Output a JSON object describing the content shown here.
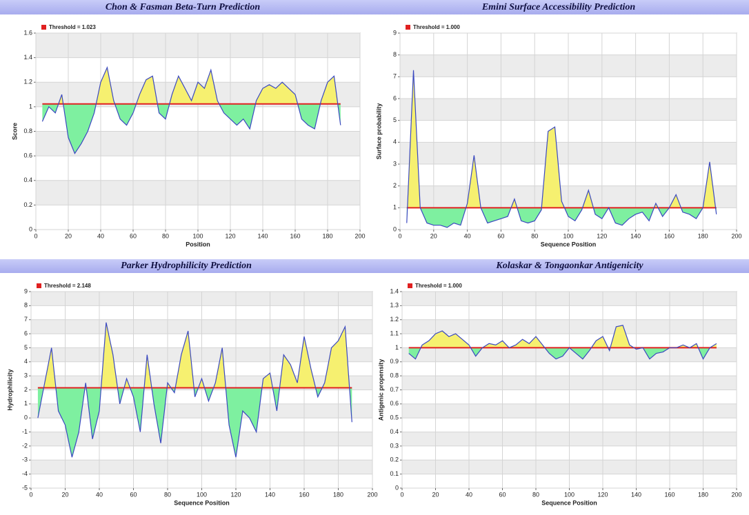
{
  "chart_data": [
    {
      "type": "line",
      "title": "Chon & Fasman Beta-Turn Prediction",
      "x_label": "Position",
      "y_label": "Score",
      "xlim": [
        0,
        200
      ],
      "xticks": [
        0,
        20,
        40,
        60,
        80,
        100,
        120,
        140,
        160,
        180,
        200
      ],
      "ylim": [
        0,
        1.6
      ],
      "yticks": [
        0,
        0.2,
        0.4,
        0.6,
        0.8,
        1,
        1.2,
        1.4,
        1.6
      ],
      "threshold": {
        "name": "Threshold = 1.023",
        "value": 1.023,
        "color": "#e02020"
      },
      "series": [
        {
          "color": "#3a48c0",
          "above_color": "#f6f070",
          "below_color": "#7ef0a0",
          "x": [
            4,
            8,
            12,
            16,
            20,
            24,
            28,
            32,
            36,
            40,
            44,
            48,
            52,
            56,
            60,
            64,
            68,
            72,
            76,
            80,
            84,
            88,
            92,
            96,
            100,
            104,
            108,
            112,
            116,
            120,
            124,
            128,
            132,
            136,
            140,
            144,
            148,
            152,
            156,
            160,
            164,
            168,
            172,
            176,
            180,
            184,
            188
          ],
          "values": [
            0.88,
            1.0,
            0.95,
            1.1,
            0.75,
            0.62,
            0.7,
            0.8,
            0.95,
            1.2,
            1.32,
            1.05,
            0.9,
            0.85,
            0.95,
            1.1,
            1.22,
            1.25,
            0.95,
            0.9,
            1.1,
            1.25,
            1.15,
            1.05,
            1.2,
            1.15,
            1.3,
            1.05,
            0.95,
            0.9,
            0.85,
            0.9,
            0.82,
            1.05,
            1.15,
            1.18,
            1.15,
            1.2,
            1.15,
            1.1,
            0.9,
            0.85,
            0.82,
            1.05,
            1.2,
            1.25,
            0.85
          ]
        }
      ]
    },
    {
      "type": "line",
      "title": "Emini Surface Accessibility Prediction",
      "x_label": "Sequence Position",
      "y_label": "Surface probability",
      "xlim": [
        0,
        200
      ],
      "xticks": [
        0,
        20,
        40,
        60,
        80,
        100,
        120,
        140,
        160,
        180,
        200
      ],
      "ylim": [
        0,
        9
      ],
      "yticks": [
        0,
        1,
        2,
        3,
        4,
        5,
        6,
        7,
        8,
        9
      ],
      "threshold": {
        "name": "Threshold = 1.000",
        "value": 1.0,
        "color": "#e02020"
      },
      "series": [
        {
          "color": "#3a48c0",
          "above_color": "#f6f070",
          "below_color": "#7ef0a0",
          "x": [
            4,
            8,
            12,
            16,
            20,
            24,
            28,
            32,
            36,
            40,
            44,
            48,
            52,
            56,
            60,
            64,
            68,
            72,
            76,
            80,
            84,
            88,
            92,
            96,
            100,
            104,
            108,
            112,
            116,
            120,
            124,
            128,
            132,
            136,
            140,
            144,
            148,
            152,
            156,
            160,
            164,
            168,
            172,
            176,
            180,
            184,
            188
          ],
          "values": [
            0.3,
            7.3,
            1.0,
            0.3,
            0.2,
            0.2,
            0.1,
            0.3,
            0.2,
            1.2,
            3.4,
            1.0,
            0.3,
            0.4,
            0.5,
            0.6,
            1.4,
            0.4,
            0.3,
            0.4,
            0.9,
            4.5,
            4.7,
            1.3,
            0.6,
            0.4,
            0.9,
            1.8,
            0.7,
            0.5,
            1.0,
            0.3,
            0.2,
            0.5,
            0.7,
            0.8,
            0.4,
            1.2,
            0.6,
            1.0,
            1.6,
            0.8,
            0.7,
            0.5,
            1.0,
            3.1,
            0.7
          ]
        }
      ]
    },
    {
      "type": "line",
      "title": "Parker Hydrophilicity Prediction",
      "x_label": "Sequence Position",
      "y_label": "Hydrophilicity",
      "xlim": [
        0,
        200
      ],
      "xticks": [
        0,
        20,
        40,
        60,
        80,
        100,
        120,
        140,
        160,
        180,
        200
      ],
      "ylim": [
        -5,
        9
      ],
      "yticks": [
        -5,
        -4,
        -3,
        -2,
        -1,
        0,
        1,
        2,
        3,
        4,
        5,
        6,
        7,
        8,
        9
      ],
      "threshold": {
        "name": "Threshold = 2.148",
        "value": 2.148,
        "color": "#e02020"
      },
      "series": [
        {
          "color": "#3a48c0",
          "above_color": "#f6f070",
          "below_color": "#7ef0a0",
          "x": [
            4,
            8,
            12,
            16,
            20,
            24,
            28,
            32,
            36,
            40,
            44,
            48,
            52,
            56,
            60,
            64,
            68,
            72,
            76,
            80,
            84,
            88,
            92,
            96,
            100,
            104,
            108,
            112,
            116,
            120,
            124,
            128,
            132,
            136,
            140,
            144,
            148,
            152,
            156,
            160,
            164,
            168,
            172,
            176,
            180,
            184,
            188
          ],
          "values": [
            0,
            2.5,
            5.0,
            0.5,
            -0.5,
            -2.8,
            -1.0,
            2.5,
            -1.5,
            0.5,
            6.8,
            4.5,
            1.0,
            2.8,
            1.5,
            -1.0,
            4.5,
            1.0,
            -1.8,
            2.5,
            1.8,
            4.5,
            6.2,
            1.5,
            2.8,
            1.2,
            2.5,
            5.0,
            -0.5,
            -2.8,
            0.5,
            0,
            -1.0,
            2.8,
            3.2,
            0.5,
            4.5,
            3.8,
            2.5,
            5.8,
            3.5,
            1.5,
            2.5,
            5.0,
            5.5,
            6.5,
            -0.3
          ]
        }
      ]
    },
    {
      "type": "line",
      "title": "Kolaskar & Tongaonkar Antigenicity",
      "x_label": "Sequence Position",
      "y_label": "Antigenic propensity",
      "xlim": [
        0,
        200
      ],
      "xticks": [
        0,
        20,
        40,
        60,
        80,
        100,
        120,
        140,
        160,
        180,
        200
      ],
      "ylim": [
        0,
        1.4
      ],
      "yticks": [
        0,
        0.1,
        0.2,
        0.3,
        0.4,
        0.5,
        0.6,
        0.7,
        0.8,
        0.9,
        1,
        1.1,
        1.2,
        1.3,
        1.4
      ],
      "threshold": {
        "name": "Threshold = 1.000",
        "value": 1.0,
        "color": "#e02020"
      },
      "series": [
        {
          "color": "#3a48c0",
          "above_color": "#f6f070",
          "below_color": "#7ef0a0",
          "x": [
            4,
            8,
            12,
            16,
            20,
            24,
            28,
            32,
            36,
            40,
            44,
            48,
            52,
            56,
            60,
            64,
            68,
            72,
            76,
            80,
            84,
            88,
            92,
            96,
            100,
            104,
            108,
            112,
            116,
            120,
            124,
            128,
            132,
            136,
            140,
            144,
            148,
            152,
            156,
            160,
            164,
            168,
            172,
            176,
            180,
            184,
            188
          ],
          "values": [
            0.96,
            0.92,
            1.02,
            1.05,
            1.1,
            1.12,
            1.08,
            1.1,
            1.06,
            1.02,
            0.94,
            1.0,
            1.03,
            1.02,
            1.05,
            1.0,
            1.02,
            1.06,
            1.03,
            1.08,
            1.02,
            0.96,
            0.92,
            0.94,
            1.0,
            0.96,
            0.92,
            0.98,
            1.05,
            1.08,
            0.98,
            1.15,
            1.16,
            1.02,
            0.99,
            1.0,
            0.92,
            0.96,
            0.97,
            1.0,
            1.0,
            1.02,
            1.0,
            1.03,
            0.92,
            1.0,
            1.03
          ]
        }
      ]
    }
  ]
}
